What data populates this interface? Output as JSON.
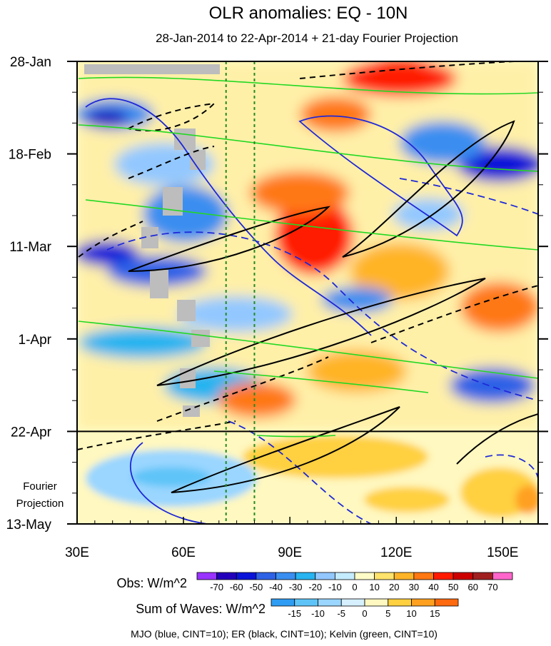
{
  "chart_data": {
    "type": "heatmap",
    "title": "OLR anomalies: EQ - 10N",
    "subtitle": "28-Jan-2014 to 22-Apr-2014 + 21-day Fourier Projection",
    "x_ticks": [
      {
        "value": 30,
        "label": "30E"
      },
      {
        "value": 60,
        "label": "60E"
      },
      {
        "value": 90,
        "label": "90E"
      },
      {
        "value": 120,
        "label": "120E"
      },
      {
        "value": 150,
        "label": "150E"
      }
    ],
    "xlim": [
      30,
      160
    ],
    "ylim": [
      "2014-01-28",
      "2014-05-13"
    ],
    "y_ticks": [
      {
        "date": "2014-01-28",
        "label": "28-Jan"
      },
      {
        "date": "2014-02-18",
        "label": "18-Feb"
      },
      {
        "date": "2014-03-11",
        "label": "11-Mar"
      },
      {
        "date": "2014-04-01",
        "label": "1-Apr"
      },
      {
        "date": "2014-04-22",
        "label": "22-Apr"
      },
      {
        "date": "2014-05-13",
        "label": "13-May"
      }
    ],
    "projection_start": "2014-04-22",
    "projection_label": [
      "Fourier",
      "Projection"
    ],
    "reference_lines_lon": [
      72,
      80
    ],
    "obs_colorbar": {
      "label": "Obs: W/m^2",
      "levels": [
        "-70",
        "-60",
        "-50",
        "-40",
        "-30",
        "-20",
        "-10",
        "0",
        "10",
        "20",
        "30",
        "40",
        "50",
        "60",
        "70"
      ],
      "colors": [
        "#9933ff",
        "#2200bb",
        "#0a14d8",
        "#2e62e6",
        "#3a8ef0",
        "#27b4f0",
        "#92c8ff",
        "#c4ecff",
        "#fffcc8",
        "#ffe36b",
        "#ffb428",
        "#ff7812",
        "#ff1a00",
        "#cc0000",
        "#a02020",
        "#ff66cc"
      ]
    },
    "waves_colorbar": {
      "label": "Sum of Waves: W/m^2",
      "levels": [
        "-15",
        "-10",
        "-5",
        "0",
        "5",
        "10",
        "15"
      ],
      "colors": [
        "#2e9cf2",
        "#5ec4f8",
        "#9ad6ff",
        "#d6f0ff",
        "#fff8c0",
        "#ffd040",
        "#ffa020",
        "#ff6a10"
      ]
    },
    "series": [
      {
        "name": "MJO",
        "color": "#1e28d8"
      },
      {
        "name": "ER",
        "color": "#000000"
      },
      {
        "name": "Kelvin",
        "color": "#22d822"
      }
    ],
    "footer": "MJO (blue, CINT=10); ER (black, CINT=10); Kelvin (green, CINT=10)"
  }
}
